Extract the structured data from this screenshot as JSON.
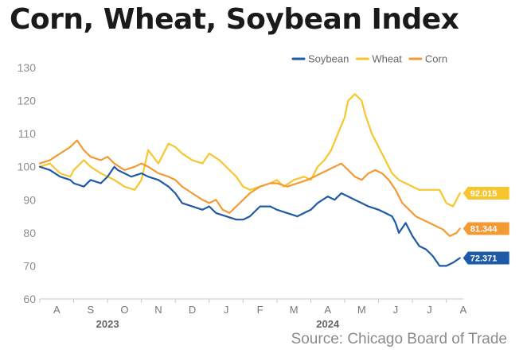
{
  "title": "Corn, Wheat, Soybean Index",
  "source": "Source: Chicago Board of Trade",
  "chart_data": {
    "type": "line",
    "ylim": [
      60,
      130
    ],
    "yticks": [
      60,
      70,
      80,
      90,
      100,
      110,
      120,
      130
    ],
    "grid": false,
    "legend_position": "top-right",
    "month_labels": [
      "A",
      "S",
      "O",
      "N",
      "D",
      "J",
      "F",
      "M",
      "A",
      "M",
      "J",
      "J",
      "A"
    ],
    "year_labels": [
      {
        "label": "2023",
        "month_index": 2
      },
      {
        "label": "2024",
        "month_index": 8.5
      }
    ],
    "x_note": "x values are months since start of Aug 2023",
    "series": [
      {
        "name": "Soybean",
        "color": "#1f5aa6",
        "last_label": "72.371",
        "points": [
          [
            0,
            100
          ],
          [
            0.3,
            99
          ],
          [
            0.6,
            97
          ],
          [
            0.9,
            96
          ],
          [
            1.0,
            95
          ],
          [
            1.3,
            94
          ],
          [
            1.5,
            96
          ],
          [
            1.8,
            95
          ],
          [
            2.0,
            97
          ],
          [
            2.2,
            100
          ],
          [
            2.3,
            99
          ],
          [
            2.5,
            98
          ],
          [
            2.7,
            97
          ],
          [
            3.0,
            98
          ],
          [
            3.2,
            97
          ],
          [
            3.5,
            96
          ],
          [
            3.8,
            94
          ],
          [
            4.0,
            92
          ],
          [
            4.2,
            89
          ],
          [
            4.5,
            88
          ],
          [
            4.8,
            87
          ],
          [
            5.0,
            88
          ],
          [
            5.2,
            86
          ],
          [
            5.5,
            85
          ],
          [
            5.8,
            84
          ],
          [
            6.0,
            84
          ],
          [
            6.2,
            85
          ],
          [
            6.5,
            88
          ],
          [
            6.8,
            88
          ],
          [
            7.0,
            87
          ],
          [
            7.3,
            86
          ],
          [
            7.6,
            85
          ],
          [
            7.8,
            86
          ],
          [
            8.0,
            87
          ],
          [
            8.2,
            89
          ],
          [
            8.5,
            91
          ],
          [
            8.7,
            90
          ],
          [
            8.9,
            92
          ],
          [
            9.1,
            91
          ],
          [
            9.3,
            90
          ],
          [
            9.5,
            89
          ],
          [
            9.7,
            88
          ],
          [
            10.0,
            87
          ],
          [
            10.2,
            86
          ],
          [
            10.4,
            85
          ],
          [
            10.5,
            83
          ],
          [
            10.6,
            80
          ],
          [
            10.8,
            83
          ],
          [
            11.0,
            79
          ],
          [
            11.2,
            76
          ],
          [
            11.4,
            75
          ],
          [
            11.6,
            73
          ],
          [
            11.8,
            70
          ],
          [
            12.0,
            70
          ],
          [
            12.2,
            71
          ],
          [
            12.4,
            72.4
          ]
        ]
      },
      {
        "name": "Wheat",
        "color": "#f7c62f",
        "last_label": "92.015",
        "points": [
          [
            0,
            100
          ],
          [
            0.3,
            101
          ],
          [
            0.6,
            98
          ],
          [
            0.9,
            97
          ],
          [
            1.0,
            99
          ],
          [
            1.3,
            102
          ],
          [
            1.5,
            100
          ],
          [
            1.8,
            98
          ],
          [
            2.0,
            97
          ],
          [
            2.2,
            96
          ],
          [
            2.5,
            94
          ],
          [
            2.8,
            93
          ],
          [
            3.0,
            96
          ],
          [
            3.2,
            105
          ],
          [
            3.5,
            101
          ],
          [
            3.8,
            107
          ],
          [
            4.0,
            106
          ],
          [
            4.2,
            104
          ],
          [
            4.5,
            102
          ],
          [
            4.8,
            101
          ],
          [
            5.0,
            104
          ],
          [
            5.3,
            102
          ],
          [
            5.6,
            99
          ],
          [
            5.8,
            97
          ],
          [
            6.0,
            94
          ],
          [
            6.2,
            93
          ],
          [
            6.5,
            94
          ],
          [
            6.8,
            95
          ],
          [
            7.0,
            96
          ],
          [
            7.2,
            94
          ],
          [
            7.5,
            96
          ],
          [
            7.8,
            97
          ],
          [
            8.0,
            96
          ],
          [
            8.2,
            100
          ],
          [
            8.4,
            102
          ],
          [
            8.6,
            105
          ],
          [
            8.8,
            110
          ],
          [
            9.0,
            115
          ],
          [
            9.1,
            120
          ],
          [
            9.3,
            122
          ],
          [
            9.5,
            120
          ],
          [
            9.6,
            116
          ],
          [
            9.8,
            110
          ],
          [
            10.0,
            106
          ],
          [
            10.2,
            102
          ],
          [
            10.4,
            98
          ],
          [
            10.6,
            96
          ],
          [
            10.8,
            95
          ],
          [
            11.0,
            94
          ],
          [
            11.2,
            93
          ],
          [
            11.5,
            93
          ],
          [
            11.8,
            93
          ],
          [
            12.0,
            89
          ],
          [
            12.2,
            88
          ],
          [
            12.4,
            92
          ]
        ]
      },
      {
        "name": "Corn",
        "color": "#f39a34",
        "last_label": "81.344",
        "points": [
          [
            0,
            101
          ],
          [
            0.3,
            102
          ],
          [
            0.6,
            104
          ],
          [
            0.9,
            106
          ],
          [
            1.1,
            108
          ],
          [
            1.3,
            105
          ],
          [
            1.5,
            103
          ],
          [
            1.8,
            102
          ],
          [
            2.0,
            103
          ],
          [
            2.2,
            101
          ],
          [
            2.5,
            99
          ],
          [
            2.8,
            100
          ],
          [
            3.0,
            101
          ],
          [
            3.2,
            100
          ],
          [
            3.5,
            98
          ],
          [
            3.8,
            97
          ],
          [
            4.0,
            96
          ],
          [
            4.2,
            94
          ],
          [
            4.5,
            92
          ],
          [
            4.8,
            90
          ],
          [
            5.0,
            89
          ],
          [
            5.2,
            90
          ],
          [
            5.4,
            87
          ],
          [
            5.6,
            86
          ],
          [
            5.8,
            88
          ],
          [
            6.0,
            90
          ],
          [
            6.2,
            92
          ],
          [
            6.5,
            94
          ],
          [
            6.8,
            95
          ],
          [
            7.0,
            95
          ],
          [
            7.3,
            94
          ],
          [
            7.6,
            95
          ],
          [
            7.9,
            96
          ],
          [
            8.1,
            97
          ],
          [
            8.3,
            98
          ],
          [
            8.5,
            99
          ],
          [
            8.7,
            100
          ],
          [
            8.9,
            101
          ],
          [
            9.1,
            99
          ],
          [
            9.3,
            97
          ],
          [
            9.5,
            96
          ],
          [
            9.7,
            98
          ],
          [
            9.9,
            99
          ],
          [
            10.1,
            98
          ],
          [
            10.3,
            96
          ],
          [
            10.5,
            93
          ],
          [
            10.7,
            89
          ],
          [
            10.9,
            87
          ],
          [
            11.1,
            85
          ],
          [
            11.3,
            84
          ],
          [
            11.5,
            83
          ],
          [
            11.7,
            82
          ],
          [
            11.9,
            81
          ],
          [
            12.1,
            79
          ],
          [
            12.3,
            80
          ],
          [
            12.4,
            81.3
          ]
        ]
      }
    ]
  }
}
